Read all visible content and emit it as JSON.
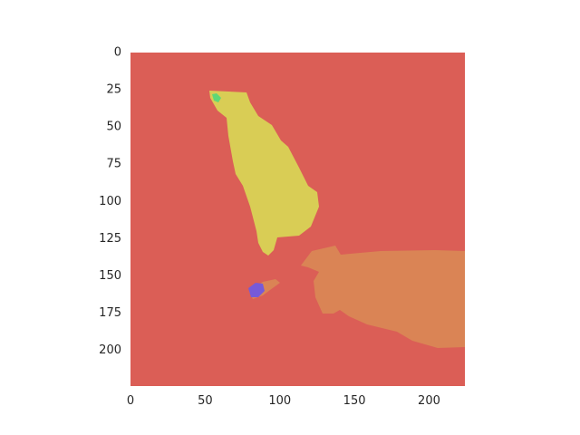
{
  "image": {
    "type": "segmentation-mask",
    "extent": {
      "x": [
        0,
        224
      ],
      "y": [
        0,
        224
      ]
    },
    "xticks": [
      0,
      50,
      100,
      150,
      200
    ],
    "yticks": [
      0,
      25,
      50,
      75,
      100,
      125,
      150,
      175,
      200
    ],
    "xtick_labels": [
      "0",
      "50",
      "100",
      "150",
      "200"
    ],
    "ytick_labels": [
      "0",
      "25",
      "50",
      "75",
      "100",
      "125",
      "150",
      "175",
      "200"
    ],
    "y_axis_inverted": true,
    "colors": {
      "background": "#db5e56",
      "yellow_region": "#d9cd55",
      "orange_region": "#da8455",
      "green_region": "#5fd876",
      "blue_region": "#775ad8"
    }
  }
}
